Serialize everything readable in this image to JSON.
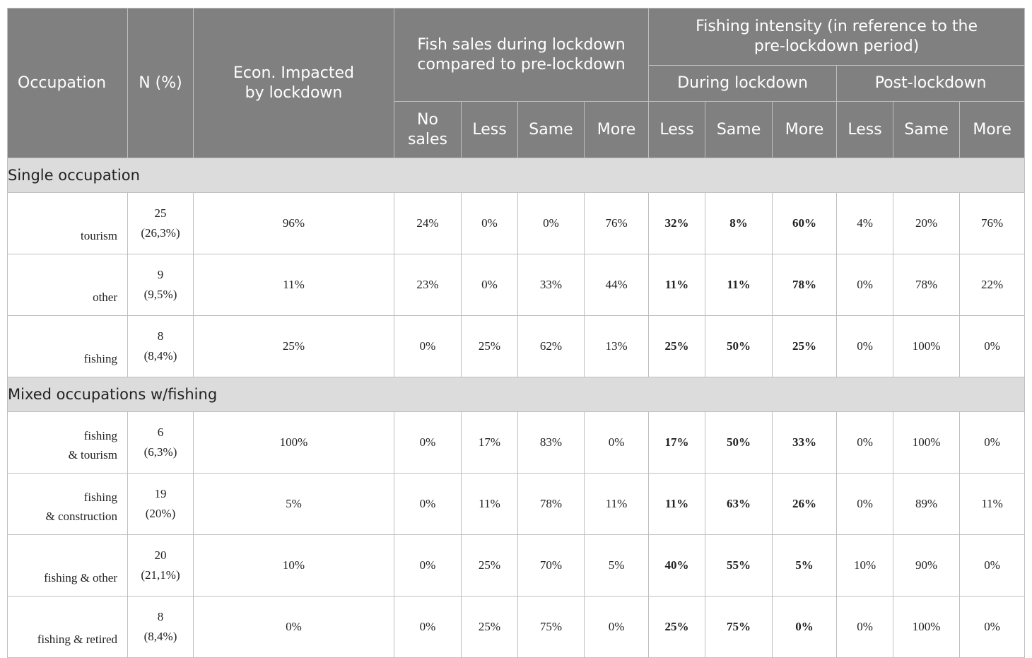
{
  "header": {
    "occupation": "Occupation",
    "n": "N (%)",
    "econ": [
      "Econ. Impacted",
      "by lockdown"
    ],
    "fish_sales": [
      "Fish sales during lockdown",
      "compared to pre-lockdown"
    ],
    "fishing_intensity": [
      "Fishing intensity (in reference to the",
      "pre-lockdown period)"
    ],
    "during_lockdown": "During lockdown",
    "post_lockdown": "Post-lockdown",
    "sales_cols": [
      [
        "No",
        "sales"
      ],
      [
        "Less"
      ],
      [
        "Same"
      ],
      [
        "More"
      ]
    ],
    "during_cols": [
      "Less",
      "Same",
      "More"
    ],
    "post_cols": [
      "Less",
      "Same",
      "More"
    ]
  },
  "sections": [
    {
      "title": "Single occupation",
      "rows": [
        {
          "occupation": [
            "tourism"
          ],
          "n": "25",
          "pct": "(26,3%)",
          "econ": "96%",
          "sales": [
            "24%",
            "0%",
            "0%",
            "76%"
          ],
          "during": [
            "32%",
            "8%",
            "60%"
          ],
          "post": [
            "4%",
            "20%",
            "76%"
          ]
        },
        {
          "occupation": [
            "other"
          ],
          "n": "9",
          "pct": "(9,5%)",
          "econ": "11%",
          "sales": [
            "23%",
            "0%",
            "33%",
            "44%"
          ],
          "during": [
            "11%",
            "11%",
            "78%"
          ],
          "post": [
            "0%",
            "78%",
            "22%"
          ]
        },
        {
          "occupation": [
            "fishing"
          ],
          "n": "8",
          "pct": "(8,4%)",
          "econ": "25%",
          "sales": [
            "0%",
            "25%",
            "62%",
            "13%"
          ],
          "during": [
            "25%",
            "50%",
            "25%"
          ],
          "post": [
            "0%",
            "100%",
            "0%"
          ]
        }
      ]
    },
    {
      "title": "Mixed occupations w/fishing",
      "rows": [
        {
          "occupation": [
            "fishing",
            "& tourism"
          ],
          "n": "6",
          "pct": "(6,3%)",
          "econ": "100%",
          "sales": [
            "0%",
            "17%",
            "83%",
            "0%"
          ],
          "during": [
            "17%",
            "50%",
            "33%"
          ],
          "post": [
            "0%",
            "100%",
            "0%"
          ]
        },
        {
          "occupation": [
            "fishing",
            "& construction"
          ],
          "n": "19",
          "pct": "(20%)",
          "econ": "5%",
          "sales": [
            "0%",
            "11%",
            "78%",
            "11%"
          ],
          "during": [
            "11%",
            "63%",
            "26%"
          ],
          "post": [
            "0%",
            "89%",
            "11%"
          ]
        },
        {
          "occupation": [
            "fishing & other"
          ],
          "n": "20",
          "pct": "(21,1%)",
          "econ": "10%",
          "sales": [
            "0%",
            "25%",
            "70%",
            "5%"
          ],
          "during": [
            "40%",
            "55%",
            "5%"
          ],
          "post": [
            "10%",
            "90%",
            "0%"
          ]
        },
        {
          "occupation": [
            "fishing & retired"
          ],
          "n": "8",
          "pct": "(8,4%)",
          "econ": "0%",
          "sales": [
            "0%",
            "25%",
            "75%",
            "0%"
          ],
          "during": [
            "25%",
            "75%",
            "0%"
          ],
          "post": [
            "0%",
            "100%",
            "0%"
          ]
        }
      ]
    }
  ]
}
